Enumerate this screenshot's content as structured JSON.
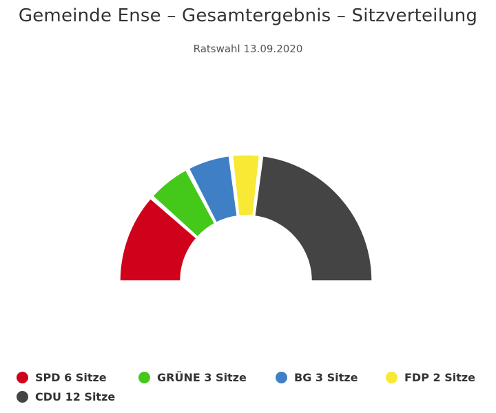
{
  "chart_data": {
    "type": "pie",
    "variant": "semicircle-parliament",
    "title": "Gemeinde Ense – Gesamtergebnis – Sitzverteilung",
    "subtitle": "Ratswahl 13.09.2020",
    "series": [
      {
        "name": "SPD",
        "value": 6,
        "color": "#d0021b"
      },
      {
        "name": "GRÜNE",
        "value": 3,
        "color": "#44c81a"
      },
      {
        "name": "BG",
        "value": 3,
        "color": "#3f7fc6"
      },
      {
        "name": "FDP",
        "value": 2,
        "color": "#f7e934"
      },
      {
        "name": "CDU",
        "value": 12,
        "color": "#444444"
      }
    ],
    "legend": {
      "placement": "bottom",
      "items": [
        {
          "label": "SPD 6 Sitze",
          "color": "#d0021b"
        },
        {
          "label": "GRÜNE 3 Sitze",
          "color": "#44c81a"
        },
        {
          "label": "BG 3 Sitze",
          "color": "#3f7fc6"
        },
        {
          "label": "FDP 2 Sitze",
          "color": "#f7e934"
        },
        {
          "label": "CDU 12 Sitze",
          "color": "#444444"
        }
      ]
    }
  }
}
